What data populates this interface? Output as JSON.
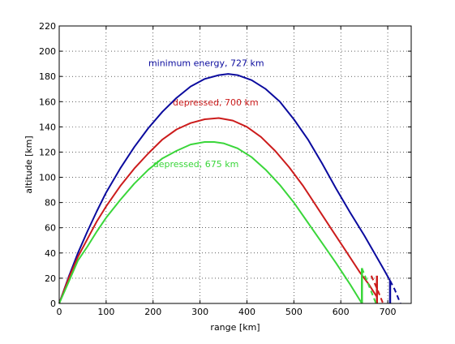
{
  "chart_data": {
    "type": "line",
    "title": "",
    "xlabel": "range [km]",
    "ylabel": "altitude [km]",
    "xlim": [
      0,
      750
    ],
    "ylim": [
      0,
      220
    ],
    "xticks": [
      0,
      100,
      200,
      300,
      400,
      500,
      600,
      700
    ],
    "yticks": [
      0,
      20,
      40,
      60,
      80,
      100,
      120,
      140,
      160,
      180,
      200,
      220
    ],
    "grid": true,
    "series": [
      {
        "name": "minimum energy, 727 km",
        "color": "#0b0b9e",
        "x": [
          0,
          20,
          40,
          60,
          80,
          100,
          130,
          160,
          190,
          220,
          250,
          280,
          310,
          340,
          360,
          380,
          410,
          440,
          470,
          500,
          530,
          560,
          590,
          620,
          650,
          670,
          690,
          705
        ],
        "y": [
          0,
          21,
          40,
          57,
          73,
          88,
          107,
          124,
          139,
          152,
          163,
          172,
          178,
          181,
          182,
          181,
          177,
          170,
          160,
          146,
          130,
          111,
          91,
          72,
          54,
          41,
          28,
          18
        ],
        "end_marker": {
          "x": 705,
          "y": [
            18,
            0
          ]
        },
        "dashed": {
          "x": [
            705,
            715,
            727
          ],
          "y": [
            18,
            11,
            0
          ]
        }
      },
      {
        "name": "depressed, 700 km",
        "color": "#cc1c1c",
        "x": [
          0,
          20,
          40,
          60,
          80,
          100,
          130,
          160,
          190,
          220,
          250,
          280,
          310,
          340,
          370,
          400,
          430,
          460,
          490,
          520,
          550,
          580,
          610,
          640,
          660,
          677
        ],
        "y": [
          0,
          20,
          37,
          51,
          65,
          77,
          93,
          107,
          119,
          130,
          138,
          143,
          146,
          147,
          145,
          140,
          132,
          121,
          108,
          93,
          76,
          59,
          42,
          25,
          15,
          5
        ],
        "end_marker": {
          "x": 677,
          "y": [
            22,
            0
          ]
        },
        "dashed": {
          "x": [
            665,
            678,
            690
          ],
          "y": [
            22,
            11,
            0
          ]
        }
      },
      {
        "name": "depressed, 675 km",
        "color": "#3ad63a",
        "x": [
          0,
          20,
          40,
          60,
          80,
          100,
          130,
          160,
          190,
          220,
          250,
          280,
          310,
          330,
          350,
          380,
          410,
          440,
          470,
          500,
          530,
          560,
          590,
          620,
          645
        ],
        "y": [
          0,
          17,
          34,
          45,
          57,
          68,
          82,
          95,
          106,
          115,
          121,
          126,
          128,
          128,
          127,
          123,
          116,
          106,
          94,
          80,
          64,
          48,
          32,
          15,
          0
        ],
        "end_marker": {
          "x": 645,
          "y": [
            28,
            0
          ]
        },
        "dashed": {
          "x": [
            645,
            660,
            675
          ],
          "y": [
            28,
            14,
            0
          ]
        }
      }
    ],
    "annotations": [
      {
        "text": "minimum energy, 727 km",
        "x": 190,
        "y": 188,
        "series": 0
      },
      {
        "text": "depressed, 700 km",
        "x": 242,
        "y": 157,
        "series": 1
      },
      {
        "text": "depressed, 675 km",
        "x": 200,
        "y": 108,
        "series": 2
      }
    ]
  }
}
